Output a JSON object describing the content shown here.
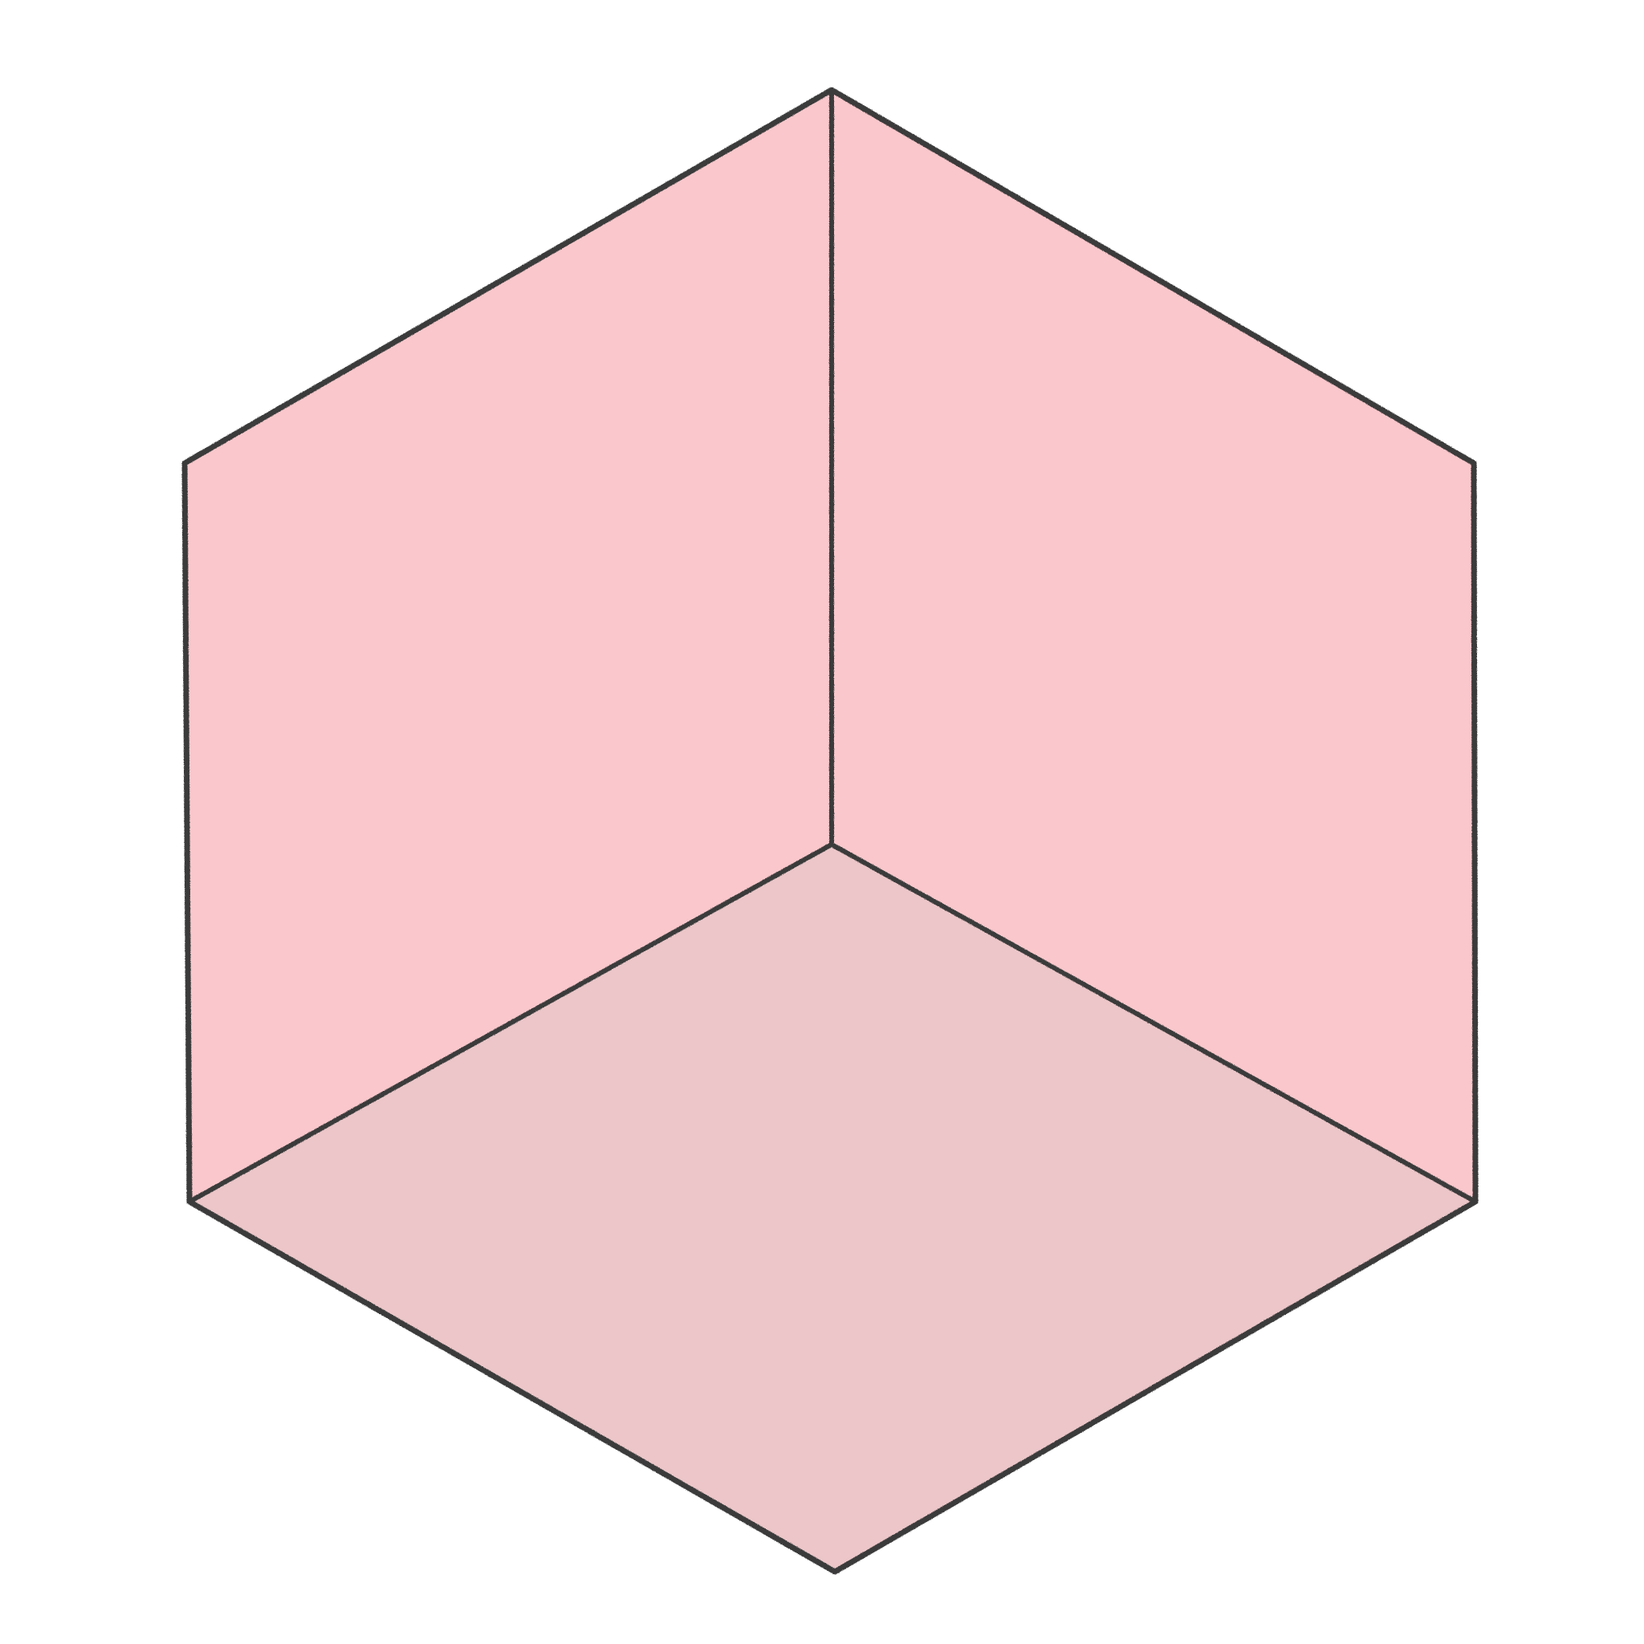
{
  "figure": {
    "shape": "cube-corner-interior",
    "faces": [
      {
        "name": "left-wall",
        "color": "#f9c7cc"
      },
      {
        "name": "right-wall",
        "color": "#f9c7cc"
      },
      {
        "name": "floor",
        "color": "#ecc6c9"
      }
    ],
    "edge_color": "#3b3b3b",
    "background": "#ffffff",
    "stroke_style": "pencil"
  }
}
